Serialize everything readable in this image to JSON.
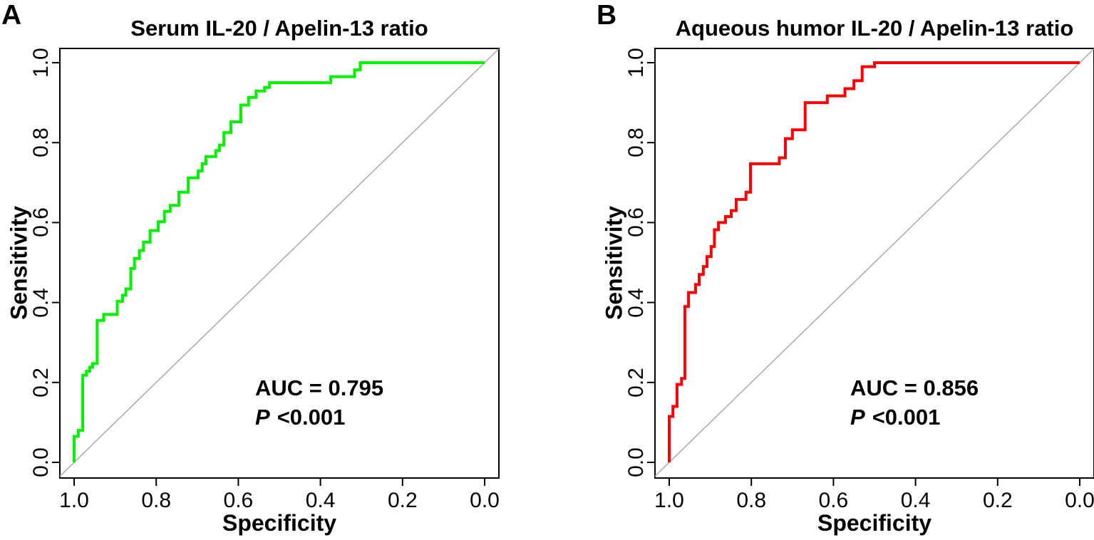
{
  "figure": {
    "background": "#ffffff",
    "box_color": "#000000",
    "tick_color": "#000000"
  },
  "panels": [
    {
      "label": "A",
      "auc_text": "AUC = 0.795",
      "p_prefix": "P",
      "p_value": "<0.001"
    },
    {
      "label": "B",
      "auc_text": "AUC = 0.856",
      "p_prefix": "P",
      "p_value": "<0.001"
    }
  ],
  "chart_data": [
    {
      "type": "line",
      "subtype": "roc-step-curve",
      "title": "Serum IL-20 / Apelin-13 ratio",
      "xlabel": "Specificity",
      "ylabel": "Sensitivity",
      "x_ticks": [
        "1.0",
        "0.8",
        "0.6",
        "0.4",
        "0.2",
        "0.0"
      ],
      "y_ticks": [
        "0.0",
        "0.2",
        "0.4",
        "0.6",
        "0.8",
        "1.0"
      ],
      "x_tick_values": [
        1.0,
        0.8,
        0.6,
        0.4,
        0.2,
        0.0
      ],
      "y_tick_values": [
        0.0,
        0.2,
        0.4,
        0.6,
        0.8,
        1.0
      ],
      "x_axis_reversed": true,
      "xlim": [
        1.0,
        0.0
      ],
      "ylim": [
        0.0,
        1.0
      ],
      "grid": false,
      "legend": false,
      "auc": 0.795,
      "p_value": "<0.001",
      "color": "#00f000",
      "reference_line": {
        "from": [
          1,
          0
        ],
        "to": [
          0,
          1
        ],
        "color": "#aaaaaa"
      },
      "points": [
        [
          1.0,
          0.0
        ],
        [
          1.0,
          0.065
        ],
        [
          0.99,
          0.065
        ],
        [
          0.99,
          0.08
        ],
        [
          0.979,
          0.08
        ],
        [
          0.979,
          0.218
        ],
        [
          0.97,
          0.218
        ],
        [
          0.97,
          0.228
        ],
        [
          0.962,
          0.228
        ],
        [
          0.962,
          0.238
        ],
        [
          0.955,
          0.238
        ],
        [
          0.955,
          0.247
        ],
        [
          0.944,
          0.247
        ],
        [
          0.944,
          0.355
        ],
        [
          0.928,
          0.355
        ],
        [
          0.928,
          0.37
        ],
        [
          0.895,
          0.37
        ],
        [
          0.895,
          0.403
        ],
        [
          0.882,
          0.403
        ],
        [
          0.882,
          0.418
        ],
        [
          0.874,
          0.418
        ],
        [
          0.874,
          0.434
        ],
        [
          0.862,
          0.434
        ],
        [
          0.862,
          0.485
        ],
        [
          0.853,
          0.485
        ],
        [
          0.853,
          0.51
        ],
        [
          0.841,
          0.51
        ],
        [
          0.841,
          0.53
        ],
        [
          0.831,
          0.53
        ],
        [
          0.831,
          0.551
        ],
        [
          0.815,
          0.551
        ],
        [
          0.815,
          0.58
        ],
        [
          0.795,
          0.58
        ],
        [
          0.795,
          0.602
        ],
        [
          0.78,
          0.602
        ],
        [
          0.78,
          0.628
        ],
        [
          0.766,
          0.628
        ],
        [
          0.766,
          0.643
        ],
        [
          0.745,
          0.643
        ],
        [
          0.745,
          0.676
        ],
        [
          0.722,
          0.676
        ],
        [
          0.722,
          0.712
        ],
        [
          0.698,
          0.712
        ],
        [
          0.698,
          0.729
        ],
        [
          0.688,
          0.729
        ],
        [
          0.688,
          0.747
        ],
        [
          0.679,
          0.747
        ],
        [
          0.679,
          0.765
        ],
        [
          0.655,
          0.765
        ],
        [
          0.655,
          0.78
        ],
        [
          0.646,
          0.78
        ],
        [
          0.646,
          0.794
        ],
        [
          0.635,
          0.794
        ],
        [
          0.635,
          0.825
        ],
        [
          0.618,
          0.825
        ],
        [
          0.618,
          0.852
        ],
        [
          0.594,
          0.852
        ],
        [
          0.594,
          0.894
        ],
        [
          0.575,
          0.894
        ],
        [
          0.575,
          0.913
        ],
        [
          0.557,
          0.913
        ],
        [
          0.557,
          0.929
        ],
        [
          0.536,
          0.929
        ],
        [
          0.536,
          0.938
        ],
        [
          0.524,
          0.938
        ],
        [
          0.524,
          0.95
        ],
        [
          0.512,
          0.95
        ],
        [
          0.375,
          0.95
        ],
        [
          0.375,
          0.965
        ],
        [
          0.317,
          0.965
        ],
        [
          0.317,
          0.982
        ],
        [
          0.303,
          0.982
        ],
        [
          0.303,
          1.0
        ],
        [
          0.0,
          1.0
        ]
      ]
    },
    {
      "type": "line",
      "subtype": "roc-step-curve",
      "title": "Aqueous humor IL-20 / Apelin-13 ratio",
      "xlabel": "Specificity",
      "ylabel": "Sensitivity",
      "x_ticks": [
        "1.0",
        "0.8",
        "0.6",
        "0.4",
        "0.2",
        "0.0"
      ],
      "y_ticks": [
        "0.0",
        "0.2",
        "0.4",
        "0.6",
        "0.8",
        "1.0"
      ],
      "x_tick_values": [
        1.0,
        0.8,
        0.6,
        0.4,
        0.2,
        0.0
      ],
      "y_tick_values": [
        0.0,
        0.2,
        0.4,
        0.6,
        0.8,
        1.0
      ],
      "x_axis_reversed": true,
      "xlim": [
        1.0,
        0.0
      ],
      "ylim": [
        0.0,
        1.0
      ],
      "grid": false,
      "legend": false,
      "auc": 0.856,
      "p_value": "<0.001",
      "color": "#ff0000",
      "reference_line": {
        "from": [
          1,
          0
        ],
        "to": [
          0,
          1
        ],
        "color": "#aaaaaa"
      },
      "points": [
        [
          1.0,
          0.0
        ],
        [
          1.0,
          0.115
        ],
        [
          0.991,
          0.115
        ],
        [
          0.991,
          0.14
        ],
        [
          0.981,
          0.14
        ],
        [
          0.981,
          0.195
        ],
        [
          0.97,
          0.195
        ],
        [
          0.97,
          0.21
        ],
        [
          0.962,
          0.21
        ],
        [
          0.962,
          0.39
        ],
        [
          0.953,
          0.39
        ],
        [
          0.953,
          0.425
        ],
        [
          0.936,
          0.425
        ],
        [
          0.936,
          0.445
        ],
        [
          0.927,
          0.445
        ],
        [
          0.927,
          0.47
        ],
        [
          0.917,
          0.47
        ],
        [
          0.917,
          0.49
        ],
        [
          0.908,
          0.49
        ],
        [
          0.908,
          0.515
        ],
        [
          0.898,
          0.515
        ],
        [
          0.898,
          0.54
        ],
        [
          0.89,
          0.54
        ],
        [
          0.89,
          0.582
        ],
        [
          0.88,
          0.582
        ],
        [
          0.88,
          0.6
        ],
        [
          0.863,
          0.6
        ],
        [
          0.863,
          0.615
        ],
        [
          0.849,
          0.615
        ],
        [
          0.849,
          0.63
        ],
        [
          0.837,
          0.63
        ],
        [
          0.837,
          0.658
        ],
        [
          0.813,
          0.658
        ],
        [
          0.813,
          0.676
        ],
        [
          0.802,
          0.676
        ],
        [
          0.802,
          0.747
        ],
        [
          0.732,
          0.747
        ],
        [
          0.732,
          0.762
        ],
        [
          0.717,
          0.762
        ],
        [
          0.717,
          0.81
        ],
        [
          0.7,
          0.81
        ],
        [
          0.7,
          0.832
        ],
        [
          0.669,
          0.832
        ],
        [
          0.669,
          0.9
        ],
        [
          0.615,
          0.9
        ],
        [
          0.615,
          0.917
        ],
        [
          0.572,
          0.917
        ],
        [
          0.572,
          0.935
        ],
        [
          0.55,
          0.935
        ],
        [
          0.55,
          0.955
        ],
        [
          0.53,
          0.955
        ],
        [
          0.53,
          0.99
        ],
        [
          0.5,
          0.99
        ],
        [
          0.5,
          1.0
        ],
        [
          0.0,
          1.0
        ]
      ]
    }
  ]
}
